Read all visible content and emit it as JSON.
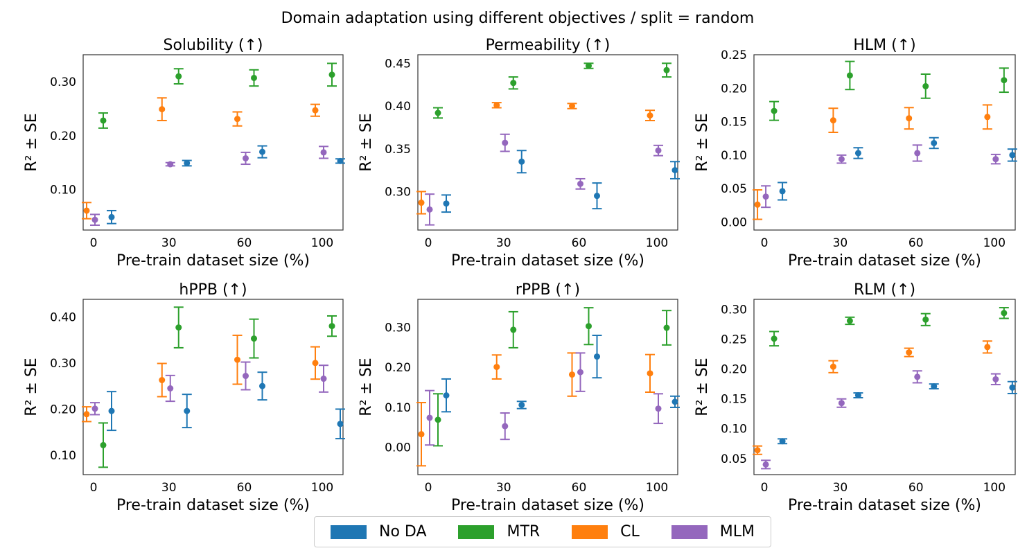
{
  "figure_title": "Domain adaptation using different objectives / split = random",
  "legend": [
    {
      "name": "No DA",
      "color": "#1f77b4"
    },
    {
      "name": "MTR",
      "color": "#2ca02c"
    },
    {
      "name": "CL",
      "color": "#ff7f0e"
    },
    {
      "name": "MLM",
      "color": "#9467bd"
    }
  ],
  "chart_data": [
    {
      "type": "scatter",
      "title": "Solubility (↑)",
      "xlabel": "Pre-train dataset size (%)",
      "ylabel": "R² ± SE",
      "xticks": [
        "0",
        "30",
        "60",
        "100"
      ],
      "yticks": [
        0.1,
        0.2,
        0.3
      ],
      "ylim": [
        0.025,
        0.35
      ],
      "series": [
        {
          "name": "No DA",
          "values": [
            0.049,
            0.149,
            0.17,
            0.153
          ],
          "errors": [
            0.012,
            0.005,
            0.011,
            0.004
          ]
        },
        {
          "name": "MTR",
          "values": [
            0.228,
            0.31,
            0.307,
            0.313
          ],
          "errors": [
            0.014,
            0.014,
            0.015,
            0.021
          ]
        },
        {
          "name": "CL",
          "values": [
            0.061,
            0.249,
            0.231,
            0.247
          ],
          "errors": [
            0.015,
            0.021,
            0.013,
            0.011
          ]
        },
        {
          "name": "MLM",
          "values": [
            0.044,
            0.147,
            0.158,
            0.169
          ],
          "errors": [
            0.01,
            0.003,
            0.011,
            0.011
          ]
        }
      ]
    },
    {
      "type": "scatter",
      "title": "Permeability (↑)",
      "xlabel": "Pre-train dataset size (%)",
      "ylabel": "R² ± SE",
      "xticks": [
        "0",
        "30",
        "60",
        "100"
      ],
      "yticks": [
        0.3,
        0.35,
        0.4,
        0.45
      ],
      "ylim": [
        0.255,
        0.46
      ],
      "series": [
        {
          "name": "No DA",
          "values": [
            0.286,
            0.335,
            0.295,
            0.325
          ],
          "errors": [
            0.01,
            0.013,
            0.015,
            0.01
          ]
        },
        {
          "name": "MTR",
          "values": [
            0.392,
            0.427,
            0.447,
            0.442
          ],
          "errors": [
            0.006,
            0.007,
            0.003,
            0.008
          ]
        },
        {
          "name": "CL",
          "values": [
            0.287,
            0.401,
            0.4,
            0.389
          ],
          "errors": [
            0.013,
            0.003,
            0.003,
            0.006
          ]
        },
        {
          "name": "MLM",
          "values": [
            0.279,
            0.357,
            0.309,
            0.348
          ],
          "errors": [
            0.018,
            0.01,
            0.006,
            0.006
          ]
        }
      ]
    },
    {
      "type": "scatter",
      "title": "HLM (↑)",
      "xlabel": "Pre-train dataset size (%)",
      "ylabel": "R² ± SE",
      "xticks": [
        "0",
        "30",
        "60",
        "100"
      ],
      "yticks": [
        0.0,
        0.05,
        0.1,
        0.15,
        0.2,
        0.25
      ],
      "ylim": [
        -0.012,
        0.25
      ],
      "series": [
        {
          "name": "No DA",
          "values": [
            0.046,
            0.103,
            0.118,
            0.1
          ],
          "errors": [
            0.013,
            0.008,
            0.008,
            0.009
          ]
        },
        {
          "name": "MTR",
          "values": [
            0.166,
            0.219,
            0.203,
            0.212
          ],
          "errors": [
            0.014,
            0.021,
            0.018,
            0.018
          ]
        },
        {
          "name": "CL",
          "values": [
            0.026,
            0.152,
            0.155,
            0.157
          ],
          "errors": [
            0.022,
            0.018,
            0.016,
            0.018
          ]
        },
        {
          "name": "MLM",
          "values": [
            0.038,
            0.094,
            0.103,
            0.094
          ],
          "errors": [
            0.016,
            0.006,
            0.012,
            0.007
          ]
        }
      ]
    },
    {
      "type": "scatter",
      "title": "hPPB (↑)",
      "xlabel": "Pre-train dataset size (%)",
      "ylabel": "R² ± SE",
      "xticks": [
        "0",
        "30",
        "60",
        "100"
      ],
      "yticks": [
        0.1,
        0.2,
        0.3,
        0.4
      ],
      "ylim": [
        0.058,
        0.438
      ],
      "series": [
        {
          "name": "No DA",
          "values": [
            0.196,
            0.196,
            0.25,
            0.168
          ],
          "errors": [
            0.042,
            0.036,
            0.03,
            0.032
          ]
        },
        {
          "name": "MTR",
          "values": [
            0.122,
            0.377,
            0.353,
            0.38
          ],
          "errors": [
            0.048,
            0.044,
            0.042,
            0.022
          ]
        },
        {
          "name": "CL",
          "values": [
            0.189,
            0.263,
            0.307,
            0.3
          ],
          "errors": [
            0.016,
            0.036,
            0.053,
            0.035
          ]
        },
        {
          "name": "MLM",
          "values": [
            0.201,
            0.245,
            0.272,
            0.266
          ],
          "errors": [
            0.013,
            0.028,
            0.03,
            0.029
          ]
        }
      ]
    },
    {
      "type": "scatter",
      "title": "rPPB (↑)",
      "xlabel": "Pre-train dataset size (%)",
      "ylabel": "R² ± SE",
      "xticks": [
        "0",
        "30",
        "60",
        "100"
      ],
      "yticks": [
        0.0,
        0.1,
        0.2,
        0.3
      ],
      "ylim": [
        -0.068,
        0.37
      ],
      "series": [
        {
          "name": "No DA",
          "values": [
            0.13,
            0.106,
            0.227,
            0.114
          ],
          "errors": [
            0.041,
            0.009,
            0.053,
            0.014
          ]
        },
        {
          "name": "MTR",
          "values": [
            0.069,
            0.294,
            0.303,
            0.299
          ],
          "errors": [
            0.065,
            0.045,
            0.046,
            0.043
          ]
        },
        {
          "name": "CL",
          "values": [
            0.033,
            0.201,
            0.182,
            0.185
          ],
          "errors": [
            0.079,
            0.03,
            0.054,
            0.047
          ]
        },
        {
          "name": "MLM",
          "values": [
            0.074,
            0.053,
            0.188,
            0.097
          ],
          "errors": [
            0.068,
            0.033,
            0.048,
            0.037
          ]
        }
      ]
    },
    {
      "type": "scatter",
      "title": "RLM (↑)",
      "xlabel": "Pre-train dataset size (%)",
      "ylabel": "R² ± SE",
      "xticks": [
        "0",
        "30",
        "60",
        "100"
      ],
      "yticks": [
        0.05,
        0.1,
        0.15,
        0.2,
        0.25,
        0.3
      ],
      "ylim": [
        0.023,
        0.317
      ],
      "series": [
        {
          "name": "No DA",
          "values": [
            0.079,
            0.156,
            0.171,
            0.169
          ],
          "errors": [
            0.004,
            0.004,
            0.004,
            0.01
          ]
        },
        {
          "name": "MTR",
          "values": [
            0.251,
            0.281,
            0.283,
            0.294
          ],
          "errors": [
            0.012,
            0.006,
            0.01,
            0.009
          ]
        },
        {
          "name": "CL",
          "values": [
            0.064,
            0.204,
            0.228,
            0.237
          ],
          "errors": [
            0.007,
            0.01,
            0.007,
            0.01
          ]
        },
        {
          "name": "MLM",
          "values": [
            0.04,
            0.143,
            0.187,
            0.183
          ],
          "errors": [
            0.007,
            0.007,
            0.01,
            0.009
          ]
        }
      ]
    }
  ]
}
